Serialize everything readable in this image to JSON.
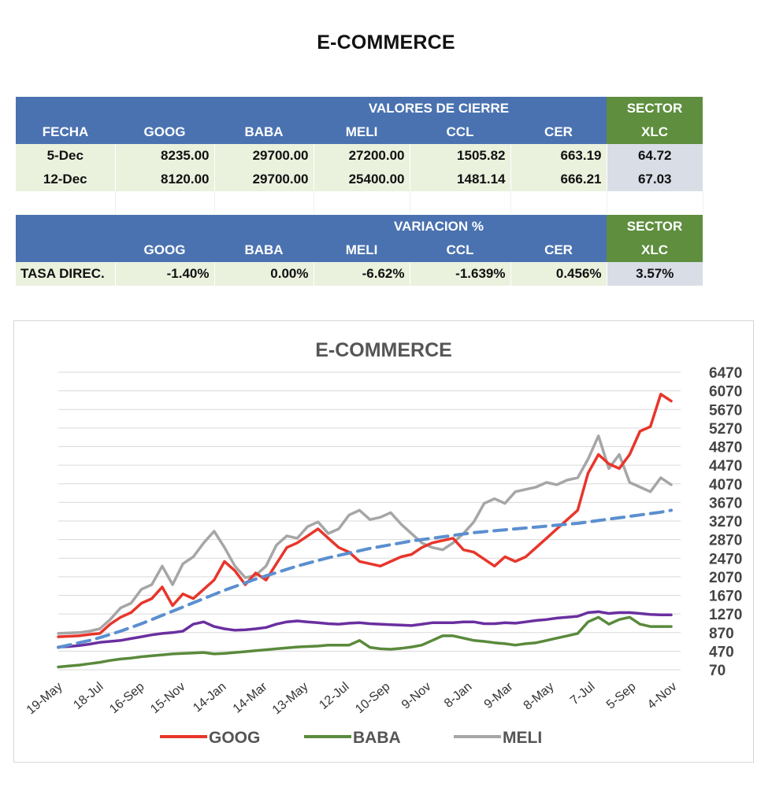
{
  "page_title": "E-COMMERCE",
  "table_cierre": {
    "group_label": "VALORES DE CIERRE",
    "sector_label": "SECTOR",
    "columns": [
      "FECHA",
      "GOOG",
      "BABA",
      "MELI",
      "CCL",
      "CER",
      "XLC"
    ],
    "rows": [
      [
        "5-Dec",
        "8235.00",
        "29700.00",
        "27200.00",
        "1505.82",
        "663.19",
        "64.72"
      ],
      [
        "12-Dec",
        "8120.00",
        "29700.00",
        "25400.00",
        "1481.14",
        "666.21",
        "67.03"
      ]
    ]
  },
  "table_variacion": {
    "group_label": "VARIACION %",
    "sector_label": "SECTOR",
    "columns": [
      "",
      "GOOG",
      "BABA",
      "MELI",
      "CCL",
      "CER",
      "XLC"
    ],
    "rows": [
      [
        "TASA DIREC.",
        "-1.40%",
        "0.00%",
        "-6.62%",
        "-1.639%",
        "0.456%",
        "3.57%"
      ]
    ]
  },
  "chart_data": {
    "type": "line",
    "title": "E-COMMERCE",
    "xlabel": "",
    "ylabel": "",
    "ylim": [
      70,
      6470
    ],
    "yticks": [
      70,
      470,
      870,
      1270,
      1670,
      2070,
      2470,
      2870,
      3270,
      3670,
      4070,
      4470,
      4870,
      5270,
      5670,
      6070,
      6470
    ],
    "x_tick_labels": [
      "19-May",
      "18-Jul",
      "16-Sep",
      "15-Nov",
      "14-Jan",
      "14-Mar",
      "13-May",
      "12-Jul",
      "10-Sep",
      "9-Nov",
      "8-Jan",
      "9-Mar",
      "8-May",
      "7-Jul",
      "5-Sep",
      "4-Nov"
    ],
    "legend_position": "bottom",
    "series": [
      {
        "name": "GOOG",
        "color": "#e8352b",
        "values": [
          780,
          790,
          800,
          830,
          850,
          1050,
          1200,
          1300,
          1500,
          1600,
          1850,
          1450,
          1700,
          1600,
          1800,
          2000,
          2400,
          2200,
          1900,
          2150,
          2000,
          2350,
          2700,
          2800,
          2950,
          3100,
          2900,
          2700,
          2600,
          2400,
          2350,
          2300,
          2400,
          2500,
          2550,
          2700,
          2800,
          2850,
          2900,
          2650,
          2600,
          2450,
          2300,
          2500,
          2400,
          2500,
          2700,
          2900,
          3100,
          3300,
          3500,
          4300,
          4700,
          4500,
          4400,
          4700,
          5200,
          5300,
          6000,
          5850
        ]
      },
      {
        "name": "BABA",
        "color": "#5a8a3c",
        "values": [
          130,
          150,
          170,
          200,
          230,
          270,
          300,
          320,
          350,
          370,
          390,
          410,
          420,
          430,
          440,
          410,
          420,
          440,
          460,
          480,
          500,
          520,
          540,
          560,
          570,
          580,
          600,
          600,
          600,
          700,
          550,
          520,
          510,
          530,
          560,
          600,
          700,
          800,
          800,
          750,
          700,
          680,
          650,
          630,
          600,
          630,
          650,
          700,
          750,
          800,
          850,
          1100,
          1200,
          1050,
          1150,
          1200,
          1050,
          1000,
          1000,
          1000
        ]
      },
      {
        "name": "MELI",
        "color": "#a6a6a6",
        "values": [
          850,
          860,
          870,
          900,
          950,
          1150,
          1400,
          1500,
          1800,
          1900,
          2300,
          1900,
          2350,
          2500,
          2800,
          3050,
          2700,
          2300,
          2050,
          2100,
          2300,
          2750,
          2950,
          2900,
          3150,
          3250,
          3000,
          3100,
          3400,
          3500,
          3300,
          3350,
          3450,
          3200,
          3000,
          2800,
          2700,
          2650,
          2800,
          3000,
          3250,
          3650,
          3750,
          3650,
          3900,
          3950,
          4000,
          4100,
          4050,
          4150,
          4200,
          4600,
          5100,
          4400,
          4700,
          4100,
          4000,
          3900,
          4200,
          4050
        ]
      },
      {
        "name": "XLC",
        "color": "#6a2fa0",
        "legend": false,
        "values": [
          560,
          570,
          590,
          620,
          660,
          680,
          700,
          740,
          780,
          820,
          850,
          870,
          900,
          1050,
          1100,
          1000,
          950,
          920,
          930,
          950,
          980,
          1050,
          1100,
          1120,
          1100,
          1080,
          1060,
          1050,
          1070,
          1080,
          1060,
          1050,
          1040,
          1030,
          1020,
          1050,
          1080,
          1080,
          1080,
          1100,
          1100,
          1060,
          1060,
          1080,
          1070,
          1100,
          1130,
          1150,
          1180,
          1200,
          1220,
          1300,
          1320,
          1280,
          1300,
          1300,
          1280,
          1260,
          1250,
          1250
        ]
      },
      {
        "name": "Trend",
        "color": "#5b8fd0",
        "dashed": true,
        "legend": false,
        "values": [
          550,
          600,
          650,
          700,
          760,
          830,
          900,
          980,
          1060,
          1150,
          1240,
          1330,
          1420,
          1510,
          1600,
          1690,
          1780,
          1860,
          1940,
          2020,
          2090,
          2160,
          2230,
          2300,
          2360,
          2420,
          2480,
          2530,
          2580,
          2630,
          2680,
          2720,
          2760,
          2800,
          2840,
          2870,
          2900,
          2930,
          2960,
          2990,
          3020,
          3040,
          3060,
          3080,
          3100,
          3120,
          3140,
          3160,
          3180,
          3200,
          3220,
          3250,
          3280,
          3310,
          3340,
          3370,
          3400,
          3430,
          3460,
          3500
        ]
      }
    ]
  }
}
